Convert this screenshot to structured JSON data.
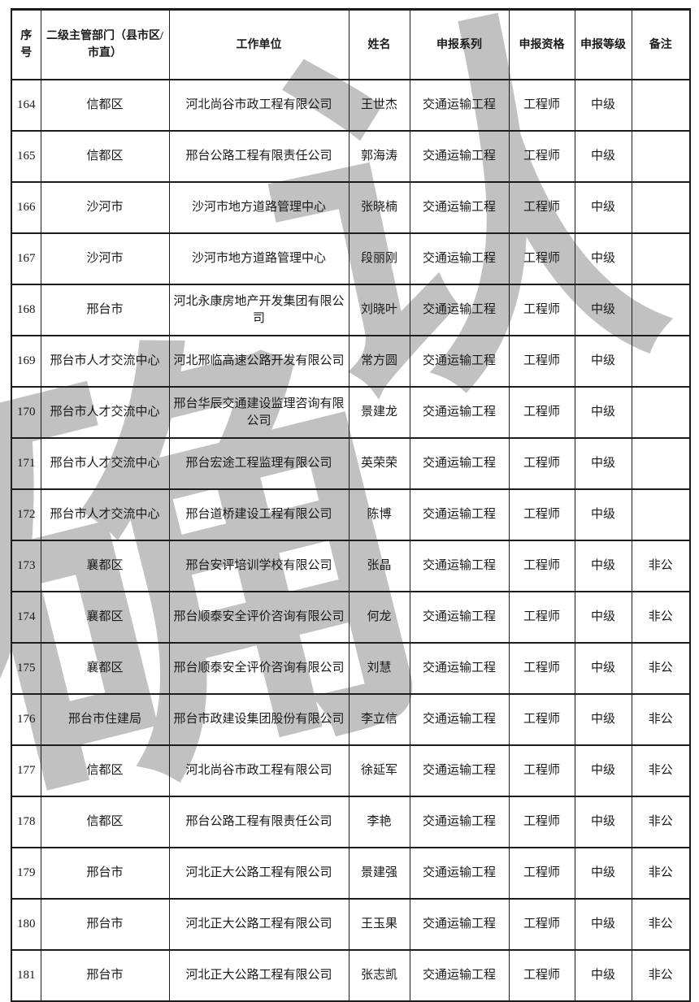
{
  "watermark": {
    "glyphs": [
      "认",
      "确"
    ],
    "color": "#b7b7b7"
  },
  "table": {
    "columns": [
      {
        "key": "index",
        "label": "序号"
      },
      {
        "key": "department",
        "label": "二级主管部门（县市区/市直）"
      },
      {
        "key": "employer",
        "label": "工作单位"
      },
      {
        "key": "name",
        "label": "姓名"
      },
      {
        "key": "series",
        "label": "申报系列"
      },
      {
        "key": "qualification",
        "label": "申报资格"
      },
      {
        "key": "level",
        "label": "申报等级"
      },
      {
        "key": "remark",
        "label": "备注"
      }
    ],
    "rows": [
      [
        "164",
        "信都区",
        "河北尚谷市政工程有限公司",
        "王世杰",
        "交通运输工程",
        "工程师",
        "中级",
        ""
      ],
      [
        "165",
        "信都区",
        "邢台公路工程有限责任公司",
        "郭海涛",
        "交通运输工程",
        "工程师",
        "中级",
        ""
      ],
      [
        "166",
        "沙河市",
        "沙河市地方道路管理中心",
        "张晓楠",
        "交通运输工程",
        "工程师",
        "中级",
        ""
      ],
      [
        "167",
        "沙河市",
        "沙河市地方道路管理中心",
        "段丽刚",
        "交通运输工程",
        "工程师",
        "中级",
        ""
      ],
      [
        "168",
        "邢台市",
        "河北永康房地产开发集团有限公司",
        "刘晓叶",
        "交通运输工程",
        "工程师",
        "中级",
        ""
      ],
      [
        "169",
        "邢台市人才交流中心",
        "河北邢临高速公路开发有限公司",
        "常方圆",
        "交通运输工程",
        "工程师",
        "中级",
        ""
      ],
      [
        "170",
        "邢台市人才交流中心",
        "邢台华辰交通建设监理咨询有限公司",
        "景建龙",
        "交通运输工程",
        "工程师",
        "中级",
        ""
      ],
      [
        "171",
        "邢台市人才交流中心",
        "邢台宏途工程监理有限公司",
        "英荣荣",
        "交通运输工程",
        "工程师",
        "中级",
        ""
      ],
      [
        "172",
        "邢台市人才交流中心",
        "邢台道桥建设工程有限公司",
        "陈博",
        "交通运输工程",
        "工程师",
        "中级",
        ""
      ],
      [
        "173",
        "襄都区",
        "邢台安评培训学校有限公司",
        "张晶",
        "交通运输工程",
        "工程师",
        "中级",
        "非公"
      ],
      [
        "174",
        "襄都区",
        "邢台顺泰安全评价咨询有限公司",
        "何龙",
        "交通运输工程",
        "工程师",
        "中级",
        "非公"
      ],
      [
        "175",
        "襄都区",
        "邢台顺泰安全评价咨询有限公司",
        "刘慧",
        "交通运输工程",
        "工程师",
        "中级",
        "非公"
      ],
      [
        "176",
        "邢台市住建局",
        "邢台市政建设集团股份有限公司",
        "李立信",
        "交通运输工程",
        "工程师",
        "中级",
        "非公"
      ],
      [
        "177",
        "信都区",
        "河北尚谷市政工程有限公司",
        "徐延军",
        "交通运输工程",
        "工程师",
        "中级",
        "非公"
      ],
      [
        "178",
        "信都区",
        "邢台公路工程有限责任公司",
        "李艳",
        "交通运输工程",
        "工程师",
        "中级",
        "非公"
      ],
      [
        "179",
        "邢台市",
        "河北正大公路工程有限公司",
        "景建强",
        "交通运输工程",
        "工程师",
        "中级",
        "非公"
      ],
      [
        "180",
        "邢台市",
        "河北正大公路工程有限公司",
        "王玉果",
        "交通运输工程",
        "工程师",
        "中级",
        "非公"
      ],
      [
        "181",
        "邢台市",
        "河北正大公路工程有限公司",
        "张志凯",
        "交通运输工程",
        "工程师",
        "中级",
        "非公"
      ]
    ]
  }
}
